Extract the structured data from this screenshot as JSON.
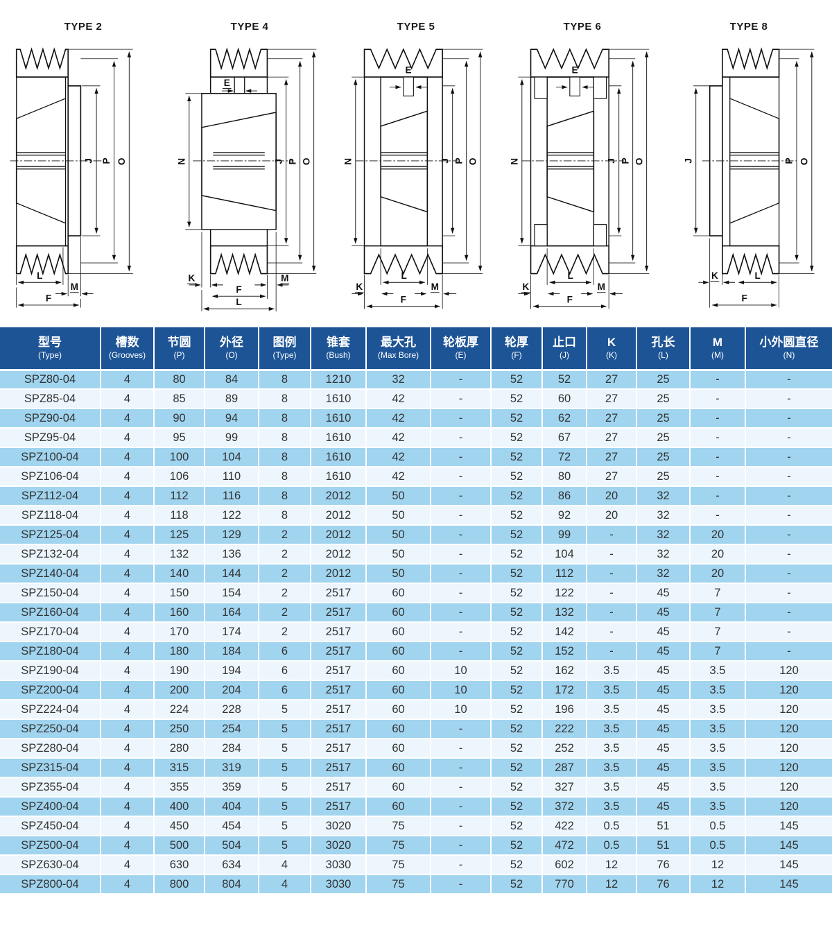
{
  "diagrams": [
    {
      "title": "TYPE 2",
      "dims": [
        "J",
        "P",
        "O",
        "L",
        "M",
        "F"
      ]
    },
    {
      "title": "TYPE 4",
      "dims": [
        "E",
        "N",
        "J",
        "P",
        "O",
        "K",
        "M",
        "F",
        "L"
      ]
    },
    {
      "title": "TYPE 5",
      "dims": [
        "E",
        "N",
        "J",
        "P",
        "O",
        "L",
        "K",
        "M",
        "F"
      ]
    },
    {
      "title": "TYPE 6",
      "dims": [
        "E",
        "N",
        "J",
        "P",
        "O",
        "L",
        "K",
        "M",
        "F"
      ]
    },
    {
      "title": "TYPE 8",
      "dims": [
        "J",
        "P",
        "O",
        "K",
        "L",
        "F"
      ]
    }
  ],
  "table": {
    "header_bg": "#1d5496",
    "row_color_odd": "#a0d4ef",
    "row_color_even": "#edf6fc",
    "columns": [
      {
        "zh": "型号",
        "en": "(Type)"
      },
      {
        "zh": "槽数",
        "en": "(Grooves)"
      },
      {
        "zh": "节圆",
        "en": "(P)"
      },
      {
        "zh": "外径",
        "en": "(O)"
      },
      {
        "zh": "图例",
        "en": "(Type)"
      },
      {
        "zh": "锥套",
        "en": "(Bush)"
      },
      {
        "zh": "最大孔",
        "en": "(Max Bore)"
      },
      {
        "zh": "轮板厚",
        "en": "(E)"
      },
      {
        "zh": "轮厚",
        "en": "(F)"
      },
      {
        "zh": "止口",
        "en": "(J)"
      },
      {
        "zh": "K",
        "en": "(K)"
      },
      {
        "zh": "孔长",
        "en": "(L)"
      },
      {
        "zh": "M",
        "en": "(M)"
      },
      {
        "zh": "小外圆直径",
        "en": "(N)"
      }
    ],
    "rows": [
      [
        "SPZ80-04",
        "4",
        "80",
        "84",
        "8",
        "1210",
        "32",
        "-",
        "52",
        "52",
        "27",
        "25",
        "-",
        "-"
      ],
      [
        "SPZ85-04",
        "4",
        "85",
        "89",
        "8",
        "1610",
        "42",
        "-",
        "52",
        "60",
        "27",
        "25",
        "-",
        "-"
      ],
      [
        "SPZ90-04",
        "4",
        "90",
        "94",
        "8",
        "1610",
        "42",
        "-",
        "52",
        "62",
        "27",
        "25",
        "-",
        "-"
      ],
      [
        "SPZ95-04",
        "4",
        "95",
        "99",
        "8",
        "1610",
        "42",
        "-",
        "52",
        "67",
        "27",
        "25",
        "-",
        "-"
      ],
      [
        "SPZ100-04",
        "4",
        "100",
        "104",
        "8",
        "1610",
        "42",
        "-",
        "52",
        "72",
        "27",
        "25",
        "-",
        "-"
      ],
      [
        "SPZ106-04",
        "4",
        "106",
        "110",
        "8",
        "1610",
        "42",
        "-",
        "52",
        "80",
        "27",
        "25",
        "-",
        "-"
      ],
      [
        "SPZ112-04",
        "4",
        "112",
        "116",
        "8",
        "2012",
        "50",
        "-",
        "52",
        "86",
        "20",
        "32",
        "-",
        "-"
      ],
      [
        "SPZ118-04",
        "4",
        "118",
        "122",
        "8",
        "2012",
        "50",
        "-",
        "52",
        "92",
        "20",
        "32",
        "-",
        "-"
      ],
      [
        "SPZ125-04",
        "4",
        "125",
        "129",
        "2",
        "2012",
        "50",
        "-",
        "52",
        "99",
        "-",
        "32",
        "20",
        "-"
      ],
      [
        "SPZ132-04",
        "4",
        "132",
        "136",
        "2",
        "2012",
        "50",
        "-",
        "52",
        "104",
        "-",
        "32",
        "20",
        "-"
      ],
      [
        "SPZ140-04",
        "4",
        "140",
        "144",
        "2",
        "2012",
        "50",
        "-",
        "52",
        "112",
        "-",
        "32",
        "20",
        "-"
      ],
      [
        "SPZ150-04",
        "4",
        "150",
        "154",
        "2",
        "2517",
        "60",
        "-",
        "52",
        "122",
        "-",
        "45",
        "7",
        "-"
      ],
      [
        "SPZ160-04",
        "4",
        "160",
        "164",
        "2",
        "2517",
        "60",
        "-",
        "52",
        "132",
        "-",
        "45",
        "7",
        "-"
      ],
      [
        "SPZ170-04",
        "4",
        "170",
        "174",
        "2",
        "2517",
        "60",
        "-",
        "52",
        "142",
        "-",
        "45",
        "7",
        "-"
      ],
      [
        "SPZ180-04",
        "4",
        "180",
        "184",
        "6",
        "2517",
        "60",
        "-",
        "52",
        "152",
        "-",
        "45",
        "7",
        "-"
      ],
      [
        "SPZ190-04",
        "4",
        "190",
        "194",
        "6",
        "2517",
        "60",
        "10",
        "52",
        "162",
        "3.5",
        "45",
        "3.5",
        "120"
      ],
      [
        "SPZ200-04",
        "4",
        "200",
        "204",
        "6",
        "2517",
        "60",
        "10",
        "52",
        "172",
        "3.5",
        "45",
        "3.5",
        "120"
      ],
      [
        "SPZ224-04",
        "4",
        "224",
        "228",
        "5",
        "2517",
        "60",
        "10",
        "52",
        "196",
        "3.5",
        "45",
        "3.5",
        "120"
      ],
      [
        "SPZ250-04",
        "4",
        "250",
        "254",
        "5",
        "2517",
        "60",
        "-",
        "52",
        "222",
        "3.5",
        "45",
        "3.5",
        "120"
      ],
      [
        "SPZ280-04",
        "4",
        "280",
        "284",
        "5",
        "2517",
        "60",
        "-",
        "52",
        "252",
        "3.5",
        "45",
        "3.5",
        "120"
      ],
      [
        "SPZ315-04",
        "4",
        "315",
        "319",
        "5",
        "2517",
        "60",
        "-",
        "52",
        "287",
        "3.5",
        "45",
        "3.5",
        "120"
      ],
      [
        "SPZ355-04",
        "4",
        "355",
        "359",
        "5",
        "2517",
        "60",
        "-",
        "52",
        "327",
        "3.5",
        "45",
        "3.5",
        "120"
      ],
      [
        "SPZ400-04",
        "4",
        "400",
        "404",
        "5",
        "2517",
        "60",
        "-",
        "52",
        "372",
        "3.5",
        "45",
        "3.5",
        "120"
      ],
      [
        "SPZ450-04",
        "4",
        "450",
        "454",
        "5",
        "3020",
        "75",
        "-",
        "52",
        "422",
        "0.5",
        "51",
        "0.5",
        "145"
      ],
      [
        "SPZ500-04",
        "4",
        "500",
        "504",
        "5",
        "3020",
        "75",
        "-",
        "52",
        "472",
        "0.5",
        "51",
        "0.5",
        "145"
      ],
      [
        "SPZ630-04",
        "4",
        "630",
        "634",
        "4",
        "3030",
        "75",
        "-",
        "52",
        "602",
        "12",
        "76",
        "12",
        "145"
      ],
      [
        "SPZ800-04",
        "4",
        "800",
        "804",
        "4",
        "3030",
        "75",
        "-",
        "52",
        "770",
        "12",
        "76",
        "12",
        "145"
      ]
    ]
  }
}
